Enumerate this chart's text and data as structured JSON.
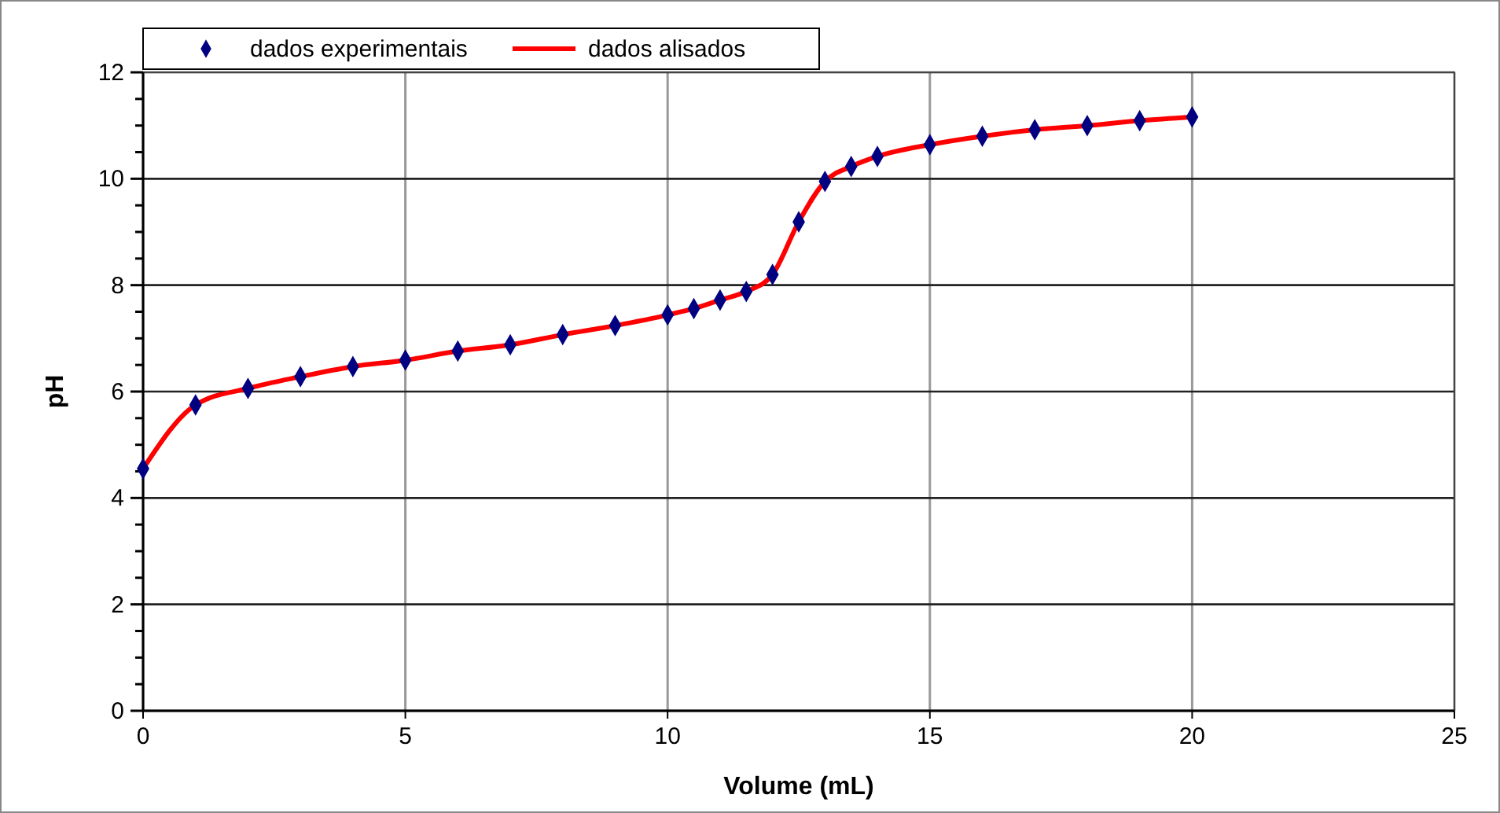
{
  "chart_data": {
    "type": "scatter",
    "xlabel": "Volume (mL)",
    "ylabel": "pH",
    "x": [
      0,
      1,
      2,
      3,
      4,
      5,
      6,
      7,
      8,
      9,
      10,
      10.5,
      11,
      11.5,
      12,
      12.5,
      13,
      13.5,
      14,
      15,
      16,
      17,
      18,
      19,
      20
    ],
    "series": [
      {
        "name": "dados experimentais",
        "color": "#000080",
        "marker": "diamond",
        "values": [
          4.55,
          5.75,
          6.06,
          6.28,
          6.47,
          6.59,
          6.76,
          6.88,
          7.07,
          7.24,
          7.44,
          7.56,
          7.72,
          7.88,
          8.2,
          9.19,
          9.95,
          10.23,
          10.42,
          10.64,
          10.8,
          10.92,
          11.0,
          11.09,
          11.16
        ]
      },
      {
        "name": "dados alisados",
        "type": "line",
        "color": "#ff0000",
        "marker": "none",
        "line_style": "solid",
        "values": [
          4.55,
          5.75,
          6.06,
          6.28,
          6.47,
          6.59,
          6.76,
          6.88,
          7.07,
          7.24,
          7.44,
          7.56,
          7.72,
          7.88,
          8.2,
          9.19,
          9.95,
          10.23,
          10.42,
          10.64,
          10.8,
          10.92,
          11.0,
          11.09,
          11.16
        ]
      }
    ],
    "xlim": [
      0,
      25
    ],
    "xticks": [
      0,
      5,
      10,
      15,
      20,
      25
    ],
    "ylim": [
      0,
      12
    ],
    "yticks": [
      0,
      {
        "value": 0.5,
        "label": null
      },
      2,
      {
        "value": 1,
        "label": null
      },
      {
        "value": 1.5,
        "label": null
      },
      {
        "value": 2.5,
        "label": null
      },
      {
        "value": 3,
        "label": null
      },
      {
        "value": 3.5,
        "label": null
      },
      4,
      {
        "value": 4.5,
        "label": null
      },
      {
        "value": 5,
        "label": null
      },
      {
        "value": 5.5,
        "label": null
      },
      6,
      {
        "value": 6.5,
        "label": null
      },
      {
        "value": 7,
        "label": null
      },
      {
        "value": 7.5,
        "label": null
      },
      8,
      {
        "value": 8.5,
        "label": null
      },
      {
        "value": 9,
        "label": null
      },
      {
        "value": 9.5,
        "label": null
      },
      10,
      {
        "value": 10.5,
        "label": null
      },
      {
        "value": 11,
        "label": null
      },
      {
        "value": 11.5,
        "label": null
      },
      12
    ],
    "grid": true,
    "legend": "top left"
  }
}
